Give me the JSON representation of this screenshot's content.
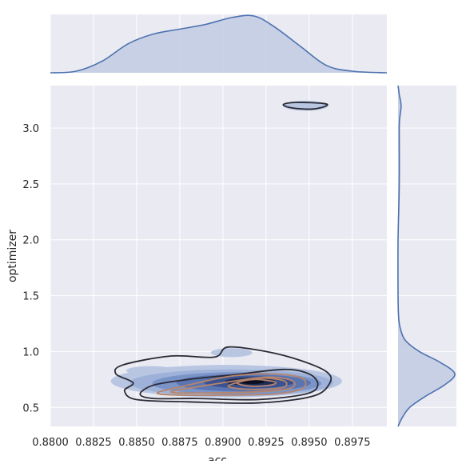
{
  "chart_data": {
    "type": "kde-jointplot",
    "xlabel": "acc",
    "ylabel": "optimizer",
    "xlim": [
      0.88,
      0.8995
    ],
    "ylim": [
      0.33,
      3.38
    ],
    "x_ticks": [
      "0.8800",
      "0.8825",
      "0.8850",
      "0.8875",
      "0.8900",
      "0.8925",
      "0.8950",
      "0.8975"
    ],
    "x_tick_values": [
      0.88,
      0.8825,
      0.885,
      0.8875,
      0.89,
      0.8925,
      0.895,
      0.8975
    ],
    "y_ticks": [
      "0.5",
      "1.0",
      "1.5",
      "2.0",
      "2.5",
      "3.0"
    ],
    "y_tick_values": [
      0.5,
      1.0,
      1.5,
      2.0,
      2.5,
      3.0
    ],
    "grid": true,
    "colors": {
      "background": "#eaeaf2",
      "grid": "#ffffff",
      "marginal_line": "#4c72b0",
      "marginal_fill": "#c4cde3",
      "fill_levels": [
        "#b8c6e2",
        "#9eb2d9",
        "#7b94c8",
        "#5a75b2",
        "#3a528f",
        "#1e2b55",
        "#0b0d20"
      ],
      "contour_line": "#2a2a36",
      "contour_line_warm": "#b7856c"
    },
    "top_marginal_density": {
      "x": [
        0.88,
        0.8815,
        0.883,
        0.8845,
        0.886,
        0.8875,
        0.889,
        0.8905,
        0.8918,
        0.893,
        0.8945,
        0.896,
        0.8975,
        0.8995
      ],
      "density": [
        0.0,
        0.03,
        0.22,
        0.55,
        0.74,
        0.83,
        0.92,
        1.05,
        1.08,
        0.87,
        0.5,
        0.14,
        0.03,
        0.0
      ]
    },
    "right_marginal_density": {
      "y": [
        0.33,
        0.4,
        0.5,
        0.6,
        0.7,
        0.8,
        0.9,
        1.0,
        1.1,
        1.2,
        1.3,
        1.5,
        2.0,
        2.5,
        3.0,
        3.1,
        3.2,
        3.3,
        3.38
      ],
      "density": [
        0.0,
        0.06,
        0.19,
        0.45,
        0.76,
        0.93,
        0.7,
        0.35,
        0.12,
        0.04,
        0.01,
        0.0,
        0.0,
        0.02,
        0.02,
        0.03,
        0.05,
        0.02,
        0.0
      ]
    },
    "kde_main_blob": {
      "center": [
        0.8915,
        0.73
      ],
      "levels": [
        {
          "rx": 0.0067,
          "ry": 0.145,
          "cx": 0.8902,
          "cy": 0.735,
          "fill": "#b8c6e2"
        },
        {
          "rx": 0.0059,
          "ry": 0.12,
          "cx": 0.8905,
          "cy": 0.72,
          "fill": "#9eb2d9"
        },
        {
          "rx": 0.0049,
          "ry": 0.1,
          "cx": 0.8908,
          "cy": 0.715,
          "fill": "#7b94c8"
        },
        {
          "rx": 0.0039,
          "ry": 0.078,
          "cx": 0.8912,
          "cy": 0.72,
          "fill": "#5a75b2"
        },
        {
          "rx": 0.0026,
          "ry": 0.055,
          "cx": 0.8915,
          "cy": 0.725,
          "fill": "#3a528f"
        },
        {
          "rx": 0.0015,
          "ry": 0.036,
          "cx": 0.8916,
          "cy": 0.73,
          "fill": "#1e2b55"
        },
        {
          "rx": 0.00075,
          "ry": 0.02,
          "cx": 0.89165,
          "cy": 0.73,
          "fill": "#0b0d20"
        }
      ],
      "extra_lobes": [
        {
          "rx": 0.0014,
          "ry": 0.04,
          "cx": 0.8858,
          "cy": 0.83,
          "fill": "#b8c6e2"
        },
        {
          "rx": 0.0012,
          "ry": 0.04,
          "cx": 0.8905,
          "cy": 0.99,
          "fill": "#b8c6e2"
        }
      ]
    },
    "kde_small_blob": {
      "center": [
        0.8948,
        3.2
      ],
      "rx": 0.0013,
      "ry": 0.045,
      "fill": "#b8c6e2"
    },
    "contour_lines": [
      {
        "color": "#2a2a36",
        "points": [
          [
            0.8838,
            0.8
          ],
          [
            0.8842,
            0.88
          ],
          [
            0.887,
            0.96
          ],
          [
            0.8895,
            0.95
          ],
          [
            0.8903,
            1.04
          ],
          [
            0.8925,
            1.0
          ],
          [
            0.8945,
            0.92
          ],
          [
            0.896,
            0.82
          ],
          [
            0.8962,
            0.72
          ],
          [
            0.8952,
            0.6
          ],
          [
            0.892,
            0.54
          ],
          [
            0.888,
            0.55
          ],
          [
            0.885,
            0.57
          ],
          [
            0.8843,
            0.65
          ],
          [
            0.8848,
            0.72
          ],
          [
            0.8838,
            0.8
          ]
        ]
      },
      {
        "color": "#2a2a36",
        "points": [
          [
            0.8852,
            0.62
          ],
          [
            0.886,
            0.7
          ],
          [
            0.888,
            0.75
          ],
          [
            0.8905,
            0.79
          ],
          [
            0.8935,
            0.84
          ],
          [
            0.895,
            0.8
          ],
          [
            0.8955,
            0.7
          ],
          [
            0.8948,
            0.62
          ],
          [
            0.892,
            0.57
          ],
          [
            0.8885,
            0.58
          ],
          [
            0.886,
            0.58
          ],
          [
            0.8852,
            0.62
          ]
        ]
      },
      {
        "color": "#b7856c",
        "points": [
          [
            0.8862,
            0.63
          ],
          [
            0.888,
            0.7
          ],
          [
            0.8905,
            0.78
          ],
          [
            0.893,
            0.8
          ],
          [
            0.8946,
            0.76
          ],
          [
            0.8946,
            0.67
          ],
          [
            0.893,
            0.62
          ],
          [
            0.89,
            0.61
          ],
          [
            0.8875,
            0.61
          ],
          [
            0.8862,
            0.63
          ]
        ]
      },
      {
        "color": "#b7856c",
        "points": [
          [
            0.887,
            0.64
          ],
          [
            0.89,
            0.72
          ],
          [
            0.8925,
            0.77
          ],
          [
            0.894,
            0.74
          ],
          [
            0.8939,
            0.67
          ],
          [
            0.892,
            0.64
          ],
          [
            0.889,
            0.63
          ],
          [
            0.887,
            0.64
          ]
        ]
      },
      {
        "color": "#b7856c",
        "points": [
          [
            0.8903,
            0.69
          ],
          [
            0.892,
            0.76
          ],
          [
            0.8935,
            0.74
          ],
          [
            0.8935,
            0.68
          ],
          [
            0.8918,
            0.66
          ],
          [
            0.8903,
            0.69
          ]
        ]
      },
      {
        "color": "#b7856c",
        "points": [
          [
            0.8908,
            0.72
          ],
          [
            0.8918,
            0.75
          ],
          [
            0.893,
            0.73
          ],
          [
            0.8928,
            0.7
          ],
          [
            0.8916,
            0.69
          ],
          [
            0.8908,
            0.72
          ]
        ]
      },
      {
        "color": "#2a2a36",
        "points": [
          [
            0.8935,
            3.21
          ],
          [
            0.8942,
            3.23
          ],
          [
            0.8958,
            3.22
          ],
          [
            0.896,
            3.2
          ],
          [
            0.8952,
            3.17
          ],
          [
            0.894,
            3.18
          ],
          [
            0.8935,
            3.21
          ]
        ]
      }
    ]
  }
}
